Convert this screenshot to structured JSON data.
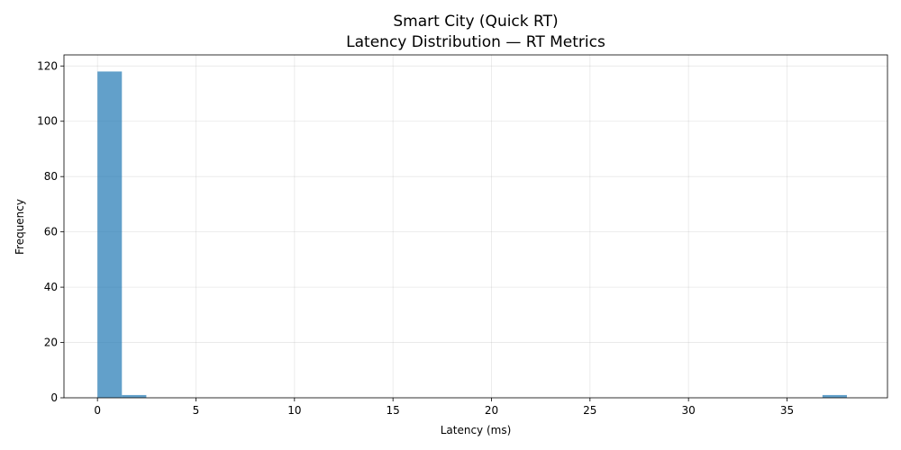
{
  "chart_data": {
    "type": "bar",
    "title": "Smart City (Quick RT)",
    "subtitle": "Latency Distribution — RT Metrics",
    "xlabel": "Latency (ms)",
    "ylabel": "Frequency",
    "xlim": [
      -1.7,
      40.1
    ],
    "ylim": [
      0,
      124
    ],
    "xticks": [
      0,
      5,
      10,
      15,
      20,
      25,
      30,
      35
    ],
    "yticks": [
      0,
      20,
      40,
      60,
      80,
      100,
      120
    ],
    "grid": true,
    "bar_color": "#1f77b4",
    "bar_opacity": 0.7,
    "bins": [
      {
        "x0": 0.0,
        "x1": 1.24,
        "count": 118
      },
      {
        "x0": 1.24,
        "x1": 2.48,
        "count": 1
      },
      {
        "x0": 36.8,
        "x1": 38.04,
        "count": 1
      }
    ]
  }
}
